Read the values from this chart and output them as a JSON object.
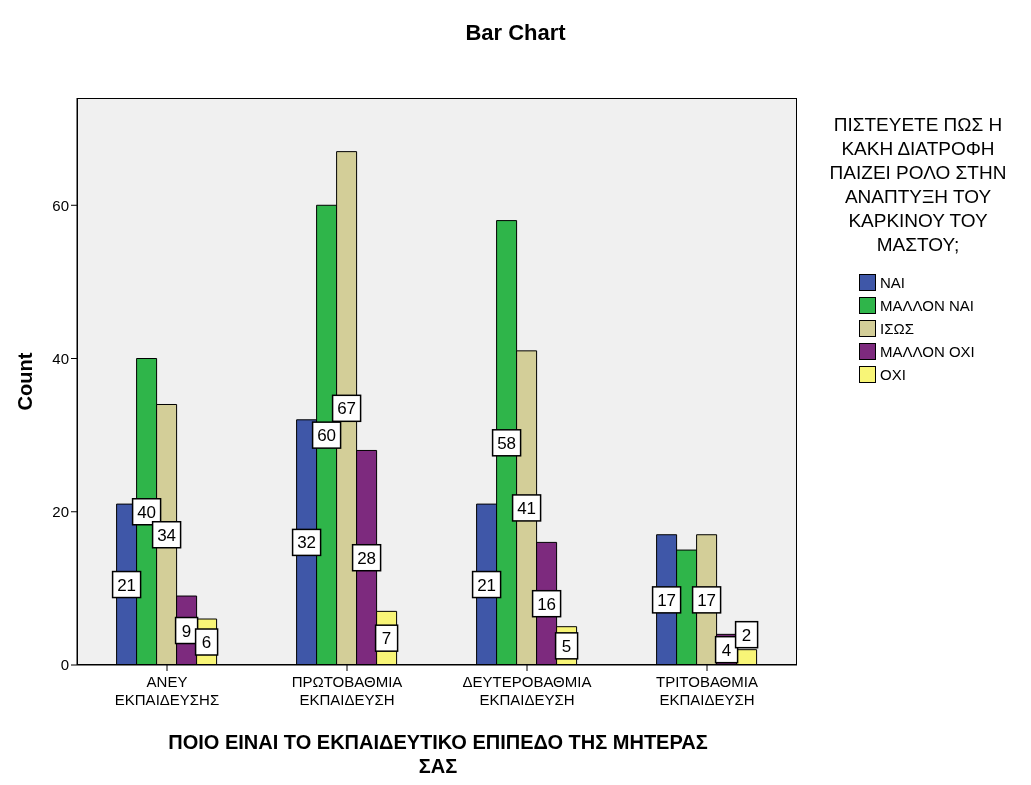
{
  "chart_data": {
    "type": "bar",
    "title": "Bar Chart",
    "xlabel": "ΠΟΙΟ ΕΙΝΑΙ ΤΟ ΕΚΠΑΙΔΕΥΤΙΚΟ ΕΠΙΠΕΔΟ ΤΗΣ ΜΗΤΕΡΑΣ ΣΑΣ",
    "ylabel": "Count",
    "legend_title": "ΠΙΣΤΕΥΕΤΕ ΠΩΣ Η ΚΑΚΗ ΔΙΑΤΡΟΦΗ ΠΑΙΖΕΙ ΡΟΛΟ ΣΤΗΝ ΑΝΑΠΤΥΞΗ ΤΟΥ ΚΑΡΚΙΝΟΥ ΤΟΥ ΜΑΣΤΟΥ;",
    "categories": [
      "ΑΝΕΥ ΕΚΠΑΙΔΕΥΣΗΣ",
      "ΠΡΩΤΟΒΑΘΜΙΑ ΕΚΠΑΙΔΕΥΣΗ",
      "ΔΕΥΤΕΡΟΒΑΘΜΙΑ ΕΚΠΑΙΔΕΥΣΗ",
      "ΤΡΙΤΟΒΑΘΜΙΑ ΕΚΠΑΙΔΕΥΣΗ"
    ],
    "series": [
      {
        "name": "ΝΑΙ",
        "color": "#3f57a8",
        "values": [
          21,
          32,
          21,
          17
        ],
        "value_labels": [
          "21",
          "32",
          "21",
          "17"
        ]
      },
      {
        "name": "ΜΑΛΛΟΝ ΝΑΙ",
        "color": "#2fb54a",
        "values": [
          40,
          60,
          58,
          15
        ],
        "value_labels": [
          "40",
          "60",
          "58",
          null
        ]
      },
      {
        "name": "ΙΣΩΣ",
        "color": "#d3ce98",
        "values": [
          34,
          67,
          41,
          17
        ],
        "value_labels": [
          "34",
          "67",
          "41",
          "17"
        ]
      },
      {
        "name": "ΜΑΛΛΟΝ ΟΧΙ",
        "color": "#7d2a7e",
        "values": [
          9,
          28,
          16,
          4
        ],
        "value_labels": [
          "9",
          "28",
          "16",
          "4"
        ]
      },
      {
        "name": "ΟΧΙ",
        "color": "#f8f577",
        "values": [
          6,
          7,
          5,
          2
        ],
        "value_labels": [
          "6",
          "7",
          "5",
          "2"
        ]
      }
    ],
    "ylim": [
      0,
      74
    ],
    "yticks": [
      0,
      20,
      40,
      60
    ],
    "legend": "right"
  }
}
